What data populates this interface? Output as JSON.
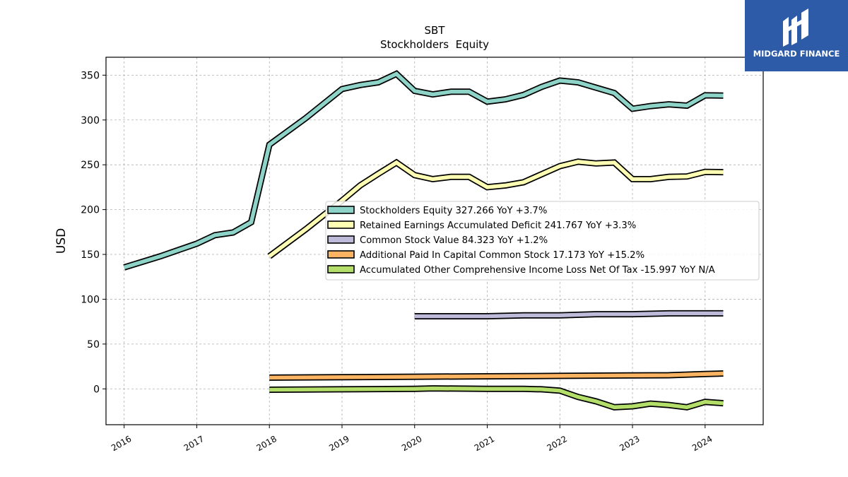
{
  "brand": {
    "name": "MIDGARD FINANCE",
    "bg_color": "#2e5ba8"
  },
  "chart_data": {
    "type": "line",
    "title": "SBT",
    "subtitle": "Stockholders  Equity",
    "ylabel": "USD",
    "xlabel": "",
    "ylim": [
      -40,
      370
    ],
    "yticks": [
      0,
      50,
      100,
      150,
      200,
      250,
      300,
      350
    ],
    "x_ticks": [
      "2016",
      "2017",
      "2018",
      "2019",
      "2020",
      "2021",
      "2022",
      "2023",
      "2024"
    ],
    "grid": true,
    "legend_position": "center-right",
    "series": [
      {
        "name": "Stockholders Equity",
        "legend_label": "Stockholders Equity  327.266 YoY +3.7%",
        "color": "#8dd3c7",
        "points": [
          [
            "2016-01",
            135.5
          ],
          [
            "2016-07",
            148
          ],
          [
            "2017-01",
            162
          ],
          [
            "2017-04",
            171.5
          ],
          [
            "2017-07",
            174.5
          ],
          [
            "2017-10",
            186
          ],
          [
            "2018-01",
            272.5
          ],
          [
            "2018-07",
            302
          ],
          [
            "2019-01",
            334.5
          ],
          [
            "2019-04",
            339
          ],
          [
            "2019-07",
            342
          ],
          [
            "2019-10",
            351.5
          ],
          [
            "2020-01",
            332.5
          ],
          [
            "2020-04",
            328.5
          ],
          [
            "2020-07",
            331.5
          ],
          [
            "2020-10",
            331.5
          ],
          [
            "2021-01",
            320.5
          ],
          [
            "2021-04",
            323
          ],
          [
            "2021-07",
            328
          ],
          [
            "2021-10",
            337
          ],
          [
            "2022-01",
            344
          ],
          [
            "2022-04",
            342
          ],
          [
            "2022-07",
            336
          ],
          [
            "2022-10",
            330
          ],
          [
            "2023-01",
            312.5
          ],
          [
            "2023-04",
            315.5
          ],
          [
            "2023-07",
            317.5
          ],
          [
            "2023-10",
            316
          ],
          [
            "2024-01",
            327.5
          ],
          [
            "2024-04",
            327.3
          ]
        ]
      },
      {
        "name": "Retained Earnings Accumulated Deficit",
        "legend_label": "Retained Earnings Accumulated Deficit  241.767 YoY +3.3%",
        "color": "#ffffb3",
        "points": [
          [
            "2018-01",
            148
          ],
          [
            "2018-07",
            178
          ],
          [
            "2019-01",
            210
          ],
          [
            "2019-04",
            227
          ],
          [
            "2019-07",
            240
          ],
          [
            "2019-10",
            252.5
          ],
          [
            "2020-01",
            238.5
          ],
          [
            "2020-04",
            234
          ],
          [
            "2020-07",
            236.5
          ],
          [
            "2020-10",
            236.5
          ],
          [
            "2021-01",
            225
          ],
          [
            "2021-04",
            227
          ],
          [
            "2021-07",
            230.5
          ],
          [
            "2021-10",
            239.5
          ],
          [
            "2022-01",
            248.5
          ],
          [
            "2022-04",
            253.5
          ],
          [
            "2022-07",
            251.5
          ],
          [
            "2022-10",
            252.5
          ],
          [
            "2023-01",
            234
          ],
          [
            "2023-04",
            234
          ],
          [
            "2023-07",
            236.5
          ],
          [
            "2023-10",
            237
          ],
          [
            "2024-01",
            242
          ],
          [
            "2024-04",
            241.8
          ]
        ]
      },
      {
        "name": "Common Stock Value",
        "legend_label": "Common Stock Value  84.323 YoY +1.2%",
        "color": "#bebada",
        "points": [
          [
            "2020-01",
            81
          ],
          [
            "2021-01",
            81
          ],
          [
            "2021-07",
            82
          ],
          [
            "2022-01",
            82
          ],
          [
            "2022-07",
            83.3
          ],
          [
            "2023-01",
            83.3
          ],
          [
            "2023-07",
            84.3
          ],
          [
            "2024-04",
            84.3
          ]
        ]
      },
      {
        "name": "Additional Paid In Capital Common Stock",
        "legend_label": "Additional Paid In Capital Common Stock  17.173 YoY +15.2%",
        "color": "#fdb462",
        "points": [
          [
            "2018-01",
            12.5
          ],
          [
            "2019-01",
            13
          ],
          [
            "2020-01",
            13.5
          ],
          [
            "2021-01",
            14
          ],
          [
            "2022-01",
            14.5
          ],
          [
            "2023-01",
            15
          ],
          [
            "2023-07",
            15.2
          ],
          [
            "2024-01",
            16.5
          ],
          [
            "2024-04",
            17.2
          ]
        ]
      },
      {
        "name": "Accumulated Other Comprehensive Income Loss Net Of Tax",
        "legend_label": "Accumulated Other Comprehensive Income Loss Net Of Tax  -15.997 YoY N/A",
        "color": "#b3de69",
        "points": [
          [
            "2018-01",
            -1
          ],
          [
            "2019-01",
            -0.5
          ],
          [
            "2020-01",
            0
          ],
          [
            "2020-04",
            0.5
          ],
          [
            "2021-01",
            0
          ],
          [
            "2021-07",
            0
          ],
          [
            "2021-10",
            -0.5
          ],
          [
            "2022-01",
            -2
          ],
          [
            "2022-04",
            -9
          ],
          [
            "2022-07",
            -14
          ],
          [
            "2022-10",
            -20.5
          ],
          [
            "2023-01",
            -19.5
          ],
          [
            "2023-04",
            -16.5
          ],
          [
            "2023-07",
            -18
          ],
          [
            "2023-10",
            -20.5
          ],
          [
            "2024-01",
            -14.5
          ],
          [
            "2024-04",
            -16
          ]
        ]
      }
    ]
  }
}
